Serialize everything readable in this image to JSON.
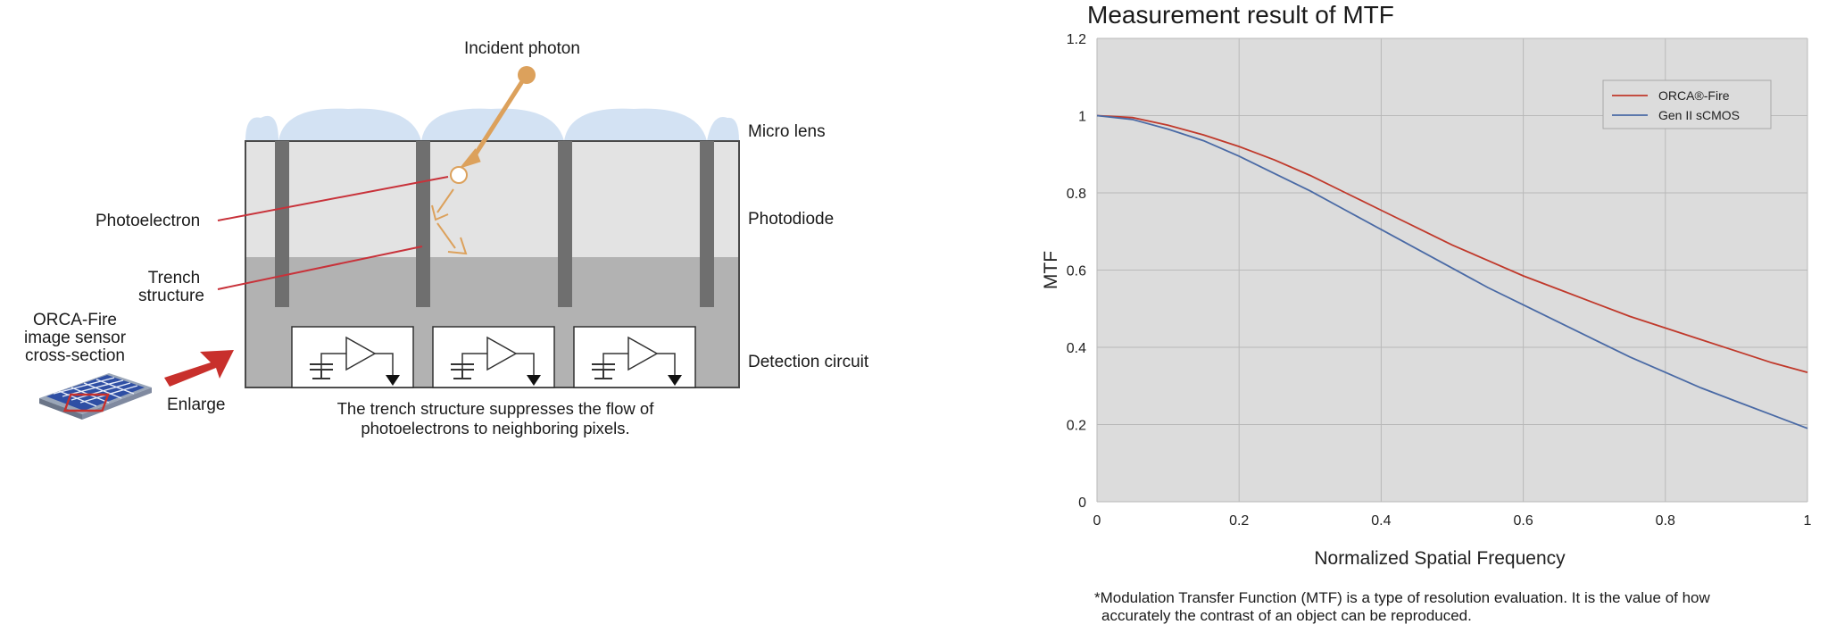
{
  "diagram": {
    "incident_photon": "Incident photon",
    "micro_lens": "Micro lens",
    "photodiode": "Photodiode",
    "detection_circuit": "Detection circuit",
    "photoelectron": "Photoelectron",
    "trench_structure_line1": "Trench",
    "trench_structure_line2": "structure",
    "sensor_line1": "ORCA-Fire",
    "sensor_line2": "image sensor",
    "sensor_line3": "cross-section",
    "enlarge": "Enlarge",
    "caption_line1": "The trench structure suppresses the flow of",
    "caption_line2": "photoelectrons to neighboring pixels.",
    "colors": {
      "lens": "#d3e2f3",
      "photodiode": "#e3e3e3",
      "substrate": "#b2b2b2",
      "trench": "#6f6f6f",
      "photon": "#dca15c",
      "pointer": "#c8323a",
      "arrow": "#c8302c",
      "sensor_blue": "#2f4fa4"
    }
  },
  "chart_data": {
    "type": "line",
    "title": "Measurement result of MTF",
    "xlabel": "Normalized Spatial Frequency",
    "ylabel": "MTF",
    "xlim": [
      0,
      1
    ],
    "ylim": [
      0,
      1.2
    ],
    "xticks": [
      "0",
      "0.2",
      "0.4",
      "0.6",
      "0.8",
      "1"
    ],
    "yticks": [
      "0",
      "0.2",
      "0.4",
      "0.6",
      "0.8",
      "1",
      "1.2"
    ],
    "grid": true,
    "legend_position": "top-right",
    "series": [
      {
        "name": "ORCA®-Fire",
        "color": "#c0392b",
        "x": [
          0,
          0.05,
          0.1,
          0.15,
          0.2,
          0.25,
          0.3,
          0.35,
          0.4,
          0.45,
          0.5,
          0.55,
          0.6,
          0.65,
          0.7,
          0.75,
          0.8,
          0.85,
          0.9,
          0.95,
          1.0
        ],
        "y": [
          1.0,
          0.995,
          0.975,
          0.95,
          0.92,
          0.885,
          0.845,
          0.8,
          0.755,
          0.71,
          0.665,
          0.625,
          0.585,
          0.55,
          0.515,
          0.48,
          0.45,
          0.42,
          0.39,
          0.36,
          0.335
        ]
      },
      {
        "name": "Gen II sCMOS",
        "color": "#4a6aa5",
        "x": [
          0,
          0.05,
          0.1,
          0.15,
          0.2,
          0.25,
          0.3,
          0.35,
          0.4,
          0.45,
          0.5,
          0.55,
          0.6,
          0.65,
          0.7,
          0.75,
          0.8,
          0.85,
          0.9,
          0.95,
          1.0
        ],
        "y": [
          1.0,
          0.99,
          0.965,
          0.935,
          0.895,
          0.85,
          0.805,
          0.755,
          0.705,
          0.655,
          0.605,
          0.555,
          0.51,
          0.465,
          0.42,
          0.375,
          0.335,
          0.295,
          0.26,
          0.225,
          0.19
        ]
      }
    ]
  },
  "footnote_line1": "*Modulation Transfer Function (MTF) is a type of resolution evaluation. It is the value of how",
  "footnote_line2": "accurately the  contrast of an object can be reproduced."
}
